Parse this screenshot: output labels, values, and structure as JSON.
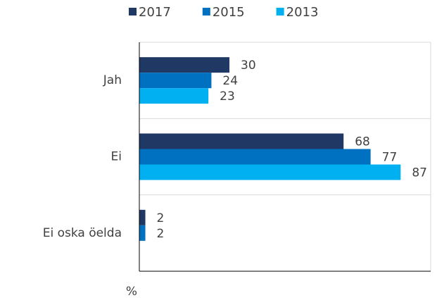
{
  "chart_data": {
    "type": "hbar",
    "categories": [
      "Jah",
      "Ei",
      "Ei oska öelda"
    ],
    "series": [
      {
        "name": "2017",
        "color": "#1f3864",
        "values": [
          30,
          68,
          2
        ]
      },
      {
        "name": "2015",
        "color": "#0070c0",
        "values": [
          24,
          77,
          2
        ]
      },
      {
        "name": "2013",
        "color": "#00b0f0",
        "values": [
          23,
          87,
          null
        ]
      }
    ],
    "xlabel": "%",
    "xlim": [
      0,
      97
    ],
    "legend": "top"
  }
}
